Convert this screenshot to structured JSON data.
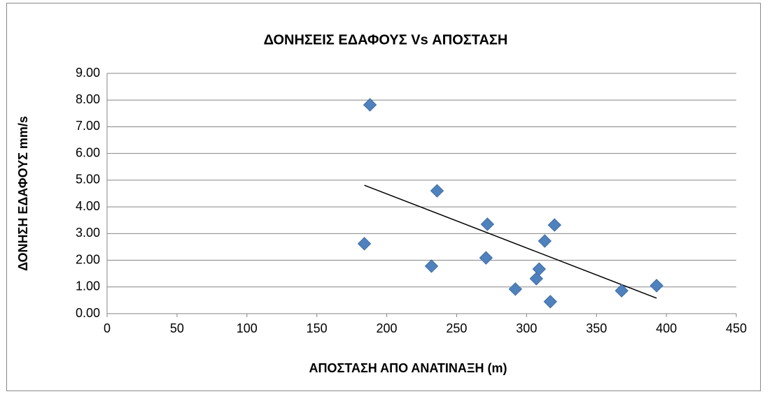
{
  "chart_data": {
    "type": "scatter",
    "title": "ΔΟΝΗΣΕΙΣ ΕΔΑΦΟΥΣ Vs ΑΠΟΣΤΑΣΗ",
    "x_label": "ΑΠΟΣΤΑΣΗ ΑΠΟ ΑΝΑΤΙΝΑΞΗ (m)",
    "y_label": "ΔΟΝΗΣΗ ΕΔΑΦΟΥΣ mm/s",
    "x": [
      184,
      188,
      232,
      236,
      272,
      271,
      292,
      307,
      309,
      313,
      320,
      317,
      368,
      393
    ],
    "values": [
      2.62,
      7.82,
      1.78,
      4.6,
      3.35,
      2.09,
      0.92,
      1.31,
      1.67,
      2.72,
      3.32,
      0.45,
      0.86,
      1.05
    ],
    "color": "#4f81bd",
    "trendline": {
      "x": [
        184,
        393
      ],
      "values": [
        4.81,
        0.58
      ],
      "color": "#000000"
    },
    "xlim": [
      0,
      450
    ],
    "xticks": [
      0,
      50,
      100,
      150,
      200,
      250,
      300,
      350,
      400,
      450
    ],
    "ylim": [
      0,
      9
    ],
    "yticks": [
      {
        "value": 0,
        "label": "0.00"
      },
      {
        "value": 1,
        "label": "1.00"
      },
      {
        "value": 2,
        "label": "2.00"
      },
      {
        "value": 3,
        "label": "3.00"
      },
      {
        "value": 4,
        "label": "4.00"
      },
      {
        "value": 5,
        "label": "5.00"
      },
      {
        "value": 6,
        "label": "6.00"
      },
      {
        "value": 7,
        "label": "7.00"
      },
      {
        "value": 8,
        "label": "8.00"
      },
      {
        "value": 9,
        "label": "9.00"
      }
    ],
    "grid": true
  }
}
